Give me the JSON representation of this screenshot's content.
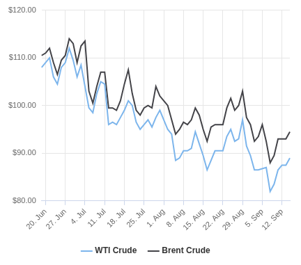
{
  "chart_data": {
    "type": "line",
    "categories": [
      null,
      "20. Jun",
      null,
      null,
      null,
      null,
      "27. Jun",
      null,
      null,
      null,
      null,
      "4. Jul",
      null,
      null,
      null,
      null,
      "11. Jul",
      null,
      null,
      null,
      null,
      "18. Jul",
      null,
      null,
      null,
      null,
      "25. Jul",
      null,
      null,
      null,
      null,
      "1. Aug",
      null,
      null,
      null,
      null,
      "8. Aug",
      null,
      null,
      null,
      null,
      "15. Aug",
      null,
      null,
      null,
      null,
      "22. Aug",
      null,
      null,
      null,
      null,
      "29. Aug",
      null,
      null,
      null,
      null,
      "5. Sep",
      null,
      null,
      null,
      null,
      "12. Sep",
      null,
      null
    ],
    "series": [
      {
        "name": "WTI Crude",
        "color": "#7cb5ec",
        "values": [
          108.0,
          null,
          110.0,
          106.0,
          104.5,
          108.0,
          109.0,
          112.0,
          109.5,
          106.0,
          108.5,
          null,
          99.5,
          98.5,
          102.5,
          105.0,
          104.5,
          96.0,
          96.5,
          96.0,
          97.5,
          99.0,
          101.0,
          100.0,
          96.5,
          95.0,
          96.0,
          97.0,
          95.5,
          97.5,
          99.0,
          97.0,
          95.0,
          94.0,
          88.5,
          89.0,
          90.5,
          90.5,
          91.0,
          94.5,
          92.0,
          89.5,
          86.5,
          88.5,
          90.5,
          90.5,
          90.5,
          93.5,
          95.0,
          92.5,
          93.0,
          97.0,
          91.5,
          89.5,
          86.5,
          86.5,
          null,
          87.0,
          82.0,
          83.5,
          86.5,
          87.5,
          87.5,
          89.0
        ]
      },
      {
        "name": "Brent Crude",
        "color": "#434348",
        "values": [
          110.5,
          111.0,
          112.0,
          109.0,
          106.5,
          109.5,
          110.5,
          114.0,
          113.0,
          109.0,
          112.5,
          113.5,
          103.0,
          100.5,
          104.0,
          107.0,
          107.0,
          99.5,
          99.5,
          99.0,
          101.0,
          104.5,
          107.5,
          102.5,
          99.0,
          98.0,
          99.5,
          100.0,
          99.5,
          104.0,
          102.0,
          101.0,
          100.0,
          97.0,
          94.0,
          95.0,
          96.5,
          96.0,
          97.0,
          99.5,
          98.0,
          95.0,
          92.5,
          95.5,
          96.0,
          96.0,
          96.0,
          99.5,
          101.5,
          99.0,
          100.0,
          103.0,
          97.5,
          96.0,
          92.5,
          93.5,
          96.0,
          92.5,
          88.0,
          89.5,
          93.0,
          93.0,
          93.0,
          94.5
        ]
      }
    ],
    "ylim": [
      80,
      120
    ],
    "yticks": [
      {
        "value": 80,
        "label": "$80.00"
      },
      {
        "value": 90,
        "label": "$90.00"
      },
      {
        "value": 100,
        "label": "$100.00"
      },
      {
        "value": 110,
        "label": "$110.00"
      },
      {
        "value": 120,
        "label": "$120.00"
      }
    ],
    "grid": true,
    "legend": "bottom"
  }
}
